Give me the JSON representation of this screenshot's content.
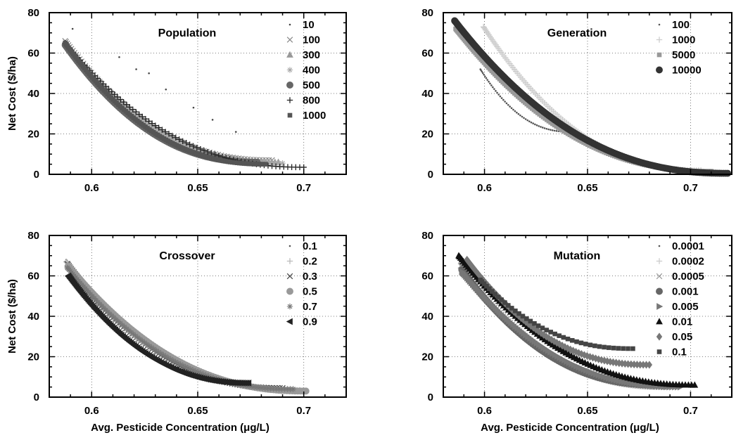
{
  "chart_data": [
    {
      "type": "scatter",
      "title": "Population",
      "xlabel": "",
      "ylabel": "Net Cost ($/ha)",
      "xlim": [
        0.58,
        0.72
      ],
      "ylim": [
        0,
        80
      ],
      "xticks": [
        "0.6",
        "0.65",
        "0.7"
      ],
      "yticks": [
        "0",
        "20",
        "40",
        "60",
        "80"
      ],
      "grid": true,
      "legend_position": "top-right",
      "series": [
        {
          "name": "10",
          "marker": "dot",
          "color": "#444444",
          "x": [
            0.591,
            0.613,
            0.621,
            0.627,
            0.635,
            0.648,
            0.657,
            0.668
          ],
          "y": [
            72,
            58,
            52,
            50,
            42,
            33,
            27,
            21
          ]
        },
        {
          "name": "100",
          "marker": "x",
          "color": "#888888",
          "curve": {
            "x0": 0.5875,
            "y0": 66,
            "x1": 0.685,
            "y1": 7,
            "n": 85
          }
        },
        {
          "name": "300",
          "marker": "triangle",
          "color": "#999999",
          "curve": {
            "x0": 0.588,
            "y0": 64,
            "x1": 0.688,
            "y1": 6,
            "n": 80
          }
        },
        {
          "name": "400",
          "marker": "star",
          "color": "#aaaaaa",
          "curve": {
            "x0": 0.5885,
            "y0": 63,
            "x1": 0.69,
            "y1": 5.5,
            "n": 80
          }
        },
        {
          "name": "500",
          "marker": "circle",
          "color": "#666666",
          "curve": {
            "x0": 0.5875,
            "y0": 64,
            "x1": 0.678,
            "y1": 6,
            "n": 110
          }
        },
        {
          "name": "800",
          "marker": "plus",
          "color": "#222222",
          "curve": {
            "x0": 0.5875,
            "y0": 65,
            "x1": 0.7,
            "y1": 3.5,
            "n": 75
          }
        },
        {
          "name": "1000",
          "marker": "square",
          "color": "#555555",
          "curve": {
            "x0": 0.5875,
            "y0": 65,
            "x1": 0.682,
            "y1": 5,
            "n": 105
          }
        }
      ]
    },
    {
      "type": "scatter",
      "title": "Generation",
      "xlabel": "",
      "ylabel": "",
      "xlim": [
        0.58,
        0.72
      ],
      "ylim": [
        0,
        80
      ],
      "xticks": [
        "0.6",
        "0.65",
        "0.7"
      ],
      "yticks": [
        "0",
        "20",
        "40",
        "60",
        "80"
      ],
      "grid": true,
      "legend_position": "top-right",
      "series": [
        {
          "name": "100",
          "marker": "dot",
          "color": "#555555",
          "curve": {
            "x0": 0.598,
            "y0": 52,
            "x1": 0.642,
            "y1": 21,
            "n": 55
          }
        },
        {
          "name": "1000",
          "marker": "plus",
          "color": "#cccccc",
          "curve": {
            "x0": 0.5995,
            "y0": 73,
            "x1": 0.705,
            "y1": 2,
            "n": 120
          }
        },
        {
          "name": "5000",
          "marker": "square",
          "color": "#999999",
          "curve": {
            "x0": 0.586,
            "y0": 72,
            "x1": 0.71,
            "y1": 1.5,
            "n": 140
          }
        },
        {
          "name": "10000",
          "marker": "circle",
          "color": "#333333",
          "curve": {
            "x0": 0.5855,
            "y0": 76,
            "x1": 0.718,
            "y1": 0.5,
            "n": 170
          }
        }
      ]
    },
    {
      "type": "scatter",
      "title": "Crossover",
      "xlabel": "Avg. Pesticide Concentration (μg/L)",
      "ylabel": "Net Cost ($/ha)",
      "xlim": [
        0.58,
        0.72
      ],
      "ylim": [
        0,
        80
      ],
      "xticks": [
        "0.6",
        "0.65",
        "0.7"
      ],
      "yticks": [
        "0",
        "20",
        "40",
        "60",
        "80"
      ],
      "grid": true,
      "legend_position": "top-right",
      "series": [
        {
          "name": "0.1",
          "marker": "dot",
          "color": "#555555",
          "curve": {
            "x0": 0.588,
            "y0": 68,
            "x1": 0.7,
            "y1": 3,
            "n": 110
          }
        },
        {
          "name": "0.2",
          "marker": "plus",
          "color": "#bbbbbb",
          "curve": {
            "x0": 0.588,
            "y0": 67,
            "x1": 0.698,
            "y1": 3.5,
            "n": 110
          }
        },
        {
          "name": "0.3",
          "marker": "x",
          "color": "#444444",
          "curve": {
            "x0": 0.5885,
            "y0": 66,
            "x1": 0.69,
            "y1": 4.5,
            "n": 100
          }
        },
        {
          "name": "0.5",
          "marker": "circle",
          "color": "#999999",
          "curve": {
            "x0": 0.589,
            "y0": 65,
            "x1": 0.701,
            "y1": 3,
            "n": 110
          }
        },
        {
          "name": "0.7",
          "marker": "star",
          "color": "#777777",
          "curve": {
            "x0": 0.5885,
            "y0": 64,
            "x1": 0.695,
            "y1": 4,
            "n": 100
          }
        },
        {
          "name": "0.9",
          "marker": "triangle-left",
          "color": "#222222",
          "curve": {
            "x0": 0.589,
            "y0": 60,
            "x1": 0.674,
            "y1": 7,
            "n": 115
          }
        }
      ]
    },
    {
      "type": "scatter",
      "title": "Mutation",
      "xlabel": "Avg. Pesticide Concentration (μg/L)",
      "ylabel": "",
      "xlim": [
        0.58,
        0.72
      ],
      "ylim": [
        0,
        80
      ],
      "xticks": [
        "0.6",
        "0.65",
        "0.7"
      ],
      "yticks": [
        "0",
        "20",
        "40",
        "60",
        "80"
      ],
      "grid": true,
      "legend_position": "top-right",
      "series": [
        {
          "name": "0.0001",
          "marker": "dot",
          "color": "#555555",
          "curve": {
            "x0": 0.588,
            "y0": 66,
            "x1": 0.69,
            "y1": 5,
            "n": 120
          }
        },
        {
          "name": "0.0002",
          "marker": "plus",
          "color": "#cccccc",
          "curve": {
            "x0": 0.5885,
            "y0": 64,
            "x1": 0.686,
            "y1": 5,
            "n": 110
          }
        },
        {
          "name": "0.0005",
          "marker": "x",
          "color": "#999999",
          "curve": {
            "x0": 0.5885,
            "y0": 65,
            "x1": 0.688,
            "y1": 5,
            "n": 110
          }
        },
        {
          "name": "0.001",
          "marker": "circle",
          "color": "#666666",
          "curve": {
            "x0": 0.589,
            "y0": 63,
            "x1": 0.684,
            "y1": 6,
            "n": 105
          }
        },
        {
          "name": "0.005",
          "marker": "triangle-right",
          "color": "#777777",
          "curve": {
            "x0": 0.589,
            "y0": 62,
            "x1": 0.695,
            "y1": 5,
            "n": 100
          }
        },
        {
          "name": "0.01",
          "marker": "triangle",
          "color": "#111111",
          "curve": {
            "x0": 0.5875,
            "y0": 70,
            "x1": 0.702,
            "y1": 6,
            "n": 95
          }
        },
        {
          "name": "0.05",
          "marker": "diamond",
          "color": "#777777",
          "curve": {
            "x0": 0.5915,
            "y0": 68,
            "x1": 0.68,
            "y1": 16,
            "n": 75
          }
        },
        {
          "name": "0.1",
          "marker": "square",
          "color": "#444444",
          "curve": {
            "x0": 0.598,
            "y0": 58,
            "x1": 0.672,
            "y1": 24,
            "n": 40
          }
        }
      ]
    }
  ]
}
